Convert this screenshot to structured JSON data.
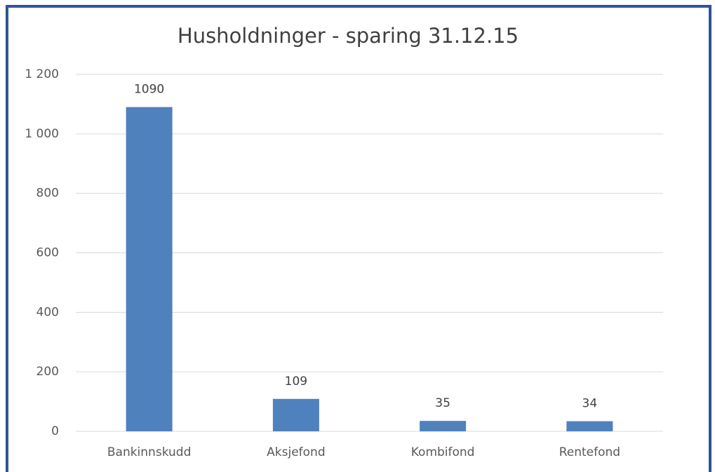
{
  "chart_data": {
    "type": "bar",
    "title": "Husholdninger - sparing 31.12.15",
    "categories": [
      "Bankinnskudd",
      "Aksjefond",
      "Kombifond",
      "Rentefond"
    ],
    "values": [
      1090,
      109,
      35,
      34
    ],
    "color": "#4f81bd",
    "ylim": [
      0,
      1200
    ],
    "yticks": [
      0,
      200,
      400,
      600,
      800,
      {
        "value": 1000,
        "label": "1 000"
      },
      {
        "value": 1200,
        "label": "1 200"
      }
    ],
    "grid": true
  }
}
